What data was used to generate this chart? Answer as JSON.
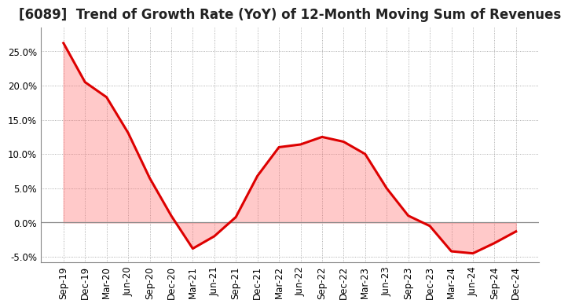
{
  "title": "[6089]  Trend of Growth Rate (YoY) of 12-Month Moving Sum of Revenues",
  "x_labels": [
    "Sep-19",
    "Dec-19",
    "Mar-20",
    "Jun-20",
    "Sep-20",
    "Dec-20",
    "Mar-21",
    "Jun-21",
    "Sep-21",
    "Dec-21",
    "Mar-22",
    "Jun-22",
    "Sep-22",
    "Dec-22",
    "Mar-23",
    "Jun-23",
    "Sep-23",
    "Dec-23",
    "Mar-24",
    "Jun-24",
    "Sep-24",
    "Dec-24"
  ],
  "y_values": [
    0.262,
    0.205,
    0.183,
    0.131,
    0.065,
    0.01,
    -0.038,
    -0.02,
    0.008,
    0.068,
    0.11,
    0.114,
    0.125,
    0.118,
    0.1,
    0.05,
    0.01,
    -0.005,
    -0.042,
    -0.045,
    -0.03,
    -0.013
  ],
  "line_color": "#dd0000",
  "line_width": 2.2,
  "background_color": "#ffffff",
  "plot_bg_color": "#ffffff",
  "grid_color": "#999999",
  "ylim": [
    -0.058,
    0.285
  ],
  "yticks": [
    -0.05,
    0.0,
    0.05,
    0.1,
    0.15,
    0.2,
    0.25
  ],
  "zero_line_color": "#888888",
  "title_fontsize": 12,
  "axis_fontsize": 8.5,
  "fill_color": "#ff6666",
  "fill_alpha": 0.35
}
